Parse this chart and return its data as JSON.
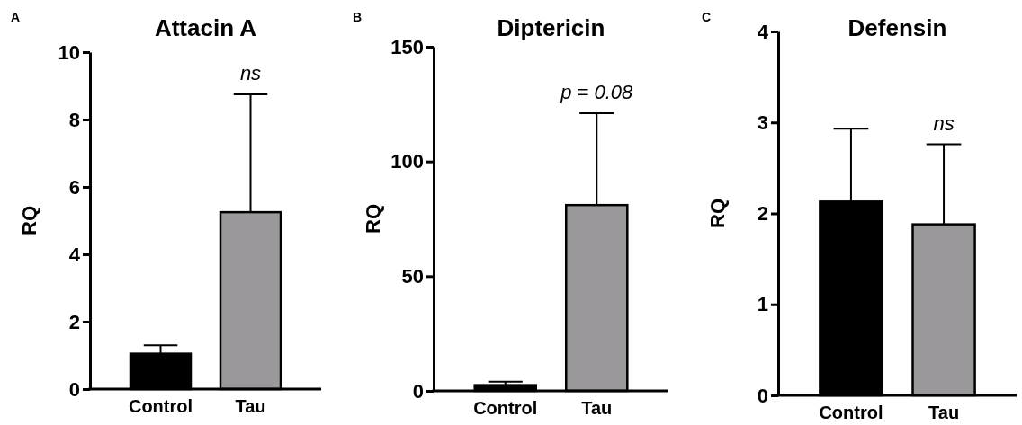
{
  "chart_data": [
    {
      "type": "bar",
      "title": "Attacin A",
      "ylabel": "RQ",
      "categories": [
        "Control",
        "Tau"
      ],
      "values": [
        1.05,
        5.25
      ],
      "errors": [
        [
          1.05,
          1.3
        ],
        [
          5.25,
          8.75
        ]
      ],
      "colors": [
        "#000000",
        "#9a989b"
      ],
      "ylim": [
        0,
        10
      ],
      "yticks": [
        0,
        2,
        4,
        6,
        8,
        10
      ],
      "grid": false,
      "annotations": [
        "A",
        "ns"
      ]
    },
    {
      "type": "bar",
      "title": "Diptericin",
      "ylabel": "RQ",
      "categories": [
        "Control",
        "Tau"
      ],
      "values": [
        2.5,
        81
      ],
      "errors": [
        [
          2.5,
          4
        ],
        [
          81,
          121
        ]
      ],
      "colors": [
        "#000000",
        "#9a989b"
      ],
      "ylim": [
        0,
        150
      ],
      "yticks": [
        0,
        50,
        100,
        150
      ],
      "grid": false,
      "annotations": [
        "B",
        "p = 0.08"
      ]
    },
    {
      "type": "bar",
      "title": "Defensin",
      "ylabel": "RQ",
      "categories": [
        "Control",
        "Tau"
      ],
      "values": [
        2.13,
        1.88
      ],
      "errors": [
        [
          2.13,
          2.93
        ],
        [
          1.88,
          2.76
        ]
      ],
      "colors": [
        "#000000",
        "#9a989b"
      ],
      "ylim": [
        0,
        4
      ],
      "yticks": [
        0,
        1,
        2,
        3,
        4
      ],
      "grid": false,
      "annotations": [
        "C",
        "ns"
      ]
    }
  ]
}
